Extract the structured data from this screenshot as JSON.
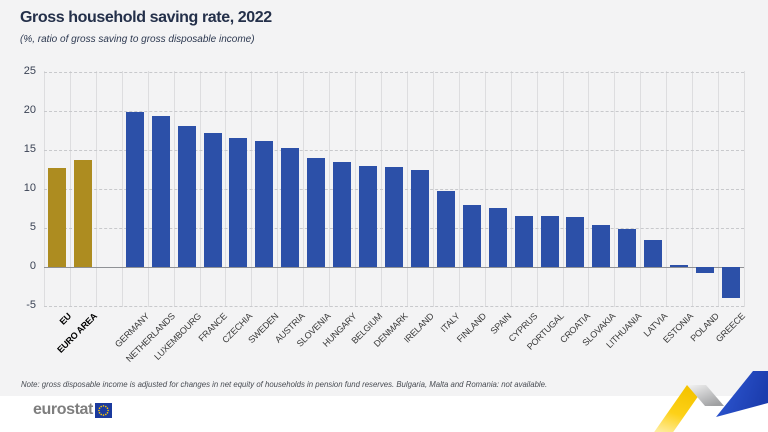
{
  "header": {
    "title": "Gross household saving rate, 2022",
    "subtitle": "(%, ratio of gross saving to gross disposable income)"
  },
  "chart_data": {
    "type": "bar",
    "title": "Gross household saving rate, 2022",
    "subtitle": "(%, ratio of gross saving to gross disposable income)",
    "ylabel": "",
    "ylim": [
      -5,
      25
    ],
    "yticks": [
      25,
      20,
      15,
      10,
      5,
      0,
      -5
    ],
    "grid": {
      "horizontal": "dashed",
      "vertical": "solid"
    },
    "legend": "none",
    "gap_after_index": 1,
    "aggregate_count": 2,
    "categories": [
      "EU",
      "EURO AREA",
      "GERMANY",
      "NETHERLANDS",
      "LUXEMBOURG",
      "FRANCE",
      "CZECHIA",
      "SWEDEN",
      "AUSTRIA",
      "SLOVENIA",
      "HUNGARY",
      "BELGIUM",
      "DENMARK",
      "IRELAND",
      "ITALY",
      "FINLAND",
      "SPAIN",
      "CYPRUS",
      "PORTUGAL",
      "CROATIA",
      "SLOVAKIA",
      "LITHUANIA",
      "LATVIA",
      "ESTONIA",
      "POLAND",
      "GREECE"
    ],
    "values": [
      12.7,
      13.7,
      19.9,
      19.4,
      18.1,
      17.2,
      16.5,
      16.1,
      15.2,
      14.0,
      13.4,
      12.9,
      12.8,
      12.4,
      9.8,
      8.0,
      7.6,
      6.6,
      6.5,
      6.4,
      5.4,
      4.9,
      3.5,
      0.2,
      -0.8,
      -4.0
    ],
    "bar_colors": {
      "aggregate": "#ad8c20",
      "country": "#2c50a8"
    }
  },
  "note": {
    "text": "Note: gross disposable income is adjusted for changes in net equity of households in pension fund reserves. Bulgaria, Malta and Romania: not available."
  },
  "footer": {
    "logo_text": "eurostat"
  },
  "colors": {
    "background": "#f3f3f4",
    "footer_background": "#ffffff",
    "title_text": "#24304a",
    "aggregate_bar": "#ad8c20",
    "country_bar": "#2c50a8",
    "zigzag_yellow": "#fdd118",
    "zigzag_gray": "#a8a9ab",
    "zigzag_blue": "#2750c8",
    "logo_gray": "#7e7e7e",
    "flag_blue": "#1b3a9e",
    "flag_stars": "#ffcc00"
  }
}
